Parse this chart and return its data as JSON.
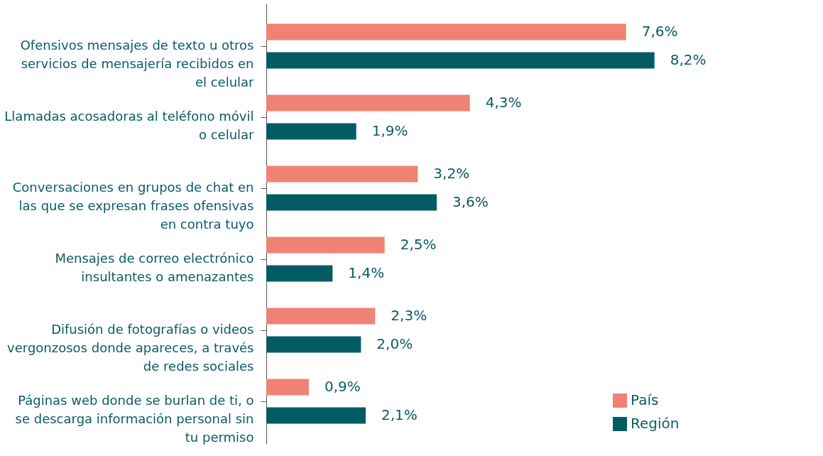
{
  "chart_data": {
    "type": "bar",
    "orientation": "horizontal",
    "legend": "bottom right",
    "categories": [
      "Ofensivos mensajes de texto u otros servicios de mensajería recibidos en el celular",
      "Llamadas acosadoras al teléfono móvil o celular",
      "Conversaciones en grupos de chat en las que se expresan frases ofensivas en contra tuyo",
      "Mensajes de correo electrónico insultantes o amenazantes",
      "Difusión de fotografías o videos vergonzosos donde apareces, a través de redes sociales",
      "Páginas web donde se burlan de ti, o se descarga información personal sin tu permiso"
    ],
    "series": [
      {
        "name": "País",
        "color": "#f08274",
        "values": [
          7.6,
          4.3,
          3.2,
          2.5,
          2.3,
          0.9
        ],
        "value_labels": [
          "7,6%",
          "4,3%",
          "3,2%",
          "2,5%",
          "2,3%",
          "0,9%"
        ]
      },
      {
        "name": "Región",
        "color": "#035c64",
        "values": [
          8.2,
          1.9,
          3.6,
          1.4,
          2.0,
          2.1
        ],
        "value_labels": [
          "8,2%",
          "1,9%",
          "3,6%",
          "1,4%",
          "2,0%",
          "2,1%"
        ]
      }
    ]
  }
}
